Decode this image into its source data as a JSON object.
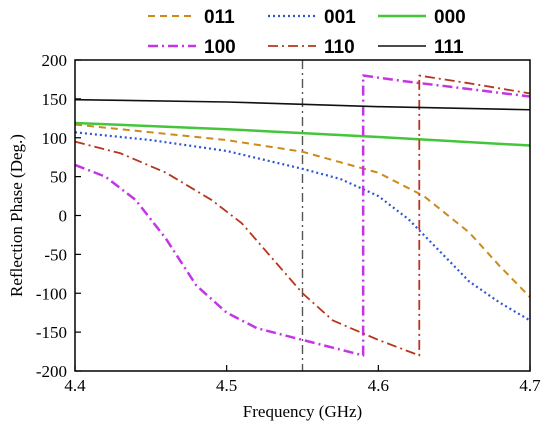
{
  "chart_data": {
    "type": "line",
    "title": "",
    "xlabel": "Frequency (GHz)",
    "ylabel": "Reflection Phase (Deg.)",
    "xlim": [
      4.4,
      4.7
    ],
    "ylim": [
      -200,
      200
    ],
    "xticks": [
      "4.4",
      "4.5",
      "4.6",
      "4.7"
    ],
    "xtick_values": [
      4.4,
      4.5,
      4.6,
      4.7
    ],
    "yticks": [
      "200",
      "150",
      "100",
      "50",
      "0",
      "-50",
      "-100",
      "-150",
      "-200"
    ],
    "ytick_values": [
      200,
      150,
      100,
      50,
      0,
      -50,
      -100,
      -150,
      -200
    ],
    "grid": false,
    "legend_position": "top",
    "annotations": [
      {
        "type": "vertical-line",
        "x": 4.55,
        "style": "dash-dot",
        "color": "#555555"
      }
    ],
    "series": [
      {
        "name": "011",
        "color": "#cc8a1a",
        "style": "dashed",
        "width": 2,
        "points": [
          [
            4.4,
            117
          ],
          [
            4.45,
            107
          ],
          [
            4.5,
            97
          ],
          [
            4.55,
            82
          ],
          [
            4.6,
            55
          ],
          [
            4.63,
            25
          ],
          [
            4.66,
            -22
          ],
          [
            4.68,
            -65
          ],
          [
            4.7,
            -105
          ]
        ]
      },
      {
        "name": "001",
        "color": "#2f55d6",
        "style": "dotted",
        "width": 2.2,
        "points": [
          [
            4.4,
            107
          ],
          [
            4.45,
            97
          ],
          [
            4.5,
            83
          ],
          [
            4.55,
            60
          ],
          [
            4.575,
            47
          ],
          [
            4.6,
            25
          ],
          [
            4.62,
            -5
          ],
          [
            4.64,
            -45
          ],
          [
            4.66,
            -85
          ],
          [
            4.68,
            -112
          ],
          [
            4.7,
            -135
          ]
        ]
      },
      {
        "name": "000",
        "color": "#44c53a",
        "style": "solid",
        "width": 2.5,
        "points": [
          [
            4.4,
            119
          ],
          [
            4.5,
            111
          ],
          [
            4.55,
            106
          ],
          [
            4.6,
            101
          ],
          [
            4.7,
            90
          ]
        ]
      },
      {
        "name": "100",
        "color": "#c435e6",
        "style": "dashdot",
        "width": 2.5,
        "points": [
          [
            4.4,
            65
          ],
          [
            4.42,
            50
          ],
          [
            4.44,
            20
          ],
          [
            4.46,
            -30
          ],
          [
            4.48,
            -90
          ],
          [
            4.5,
            -125
          ],
          [
            4.52,
            -145
          ],
          [
            4.55,
            -160
          ],
          [
            4.57,
            -170
          ],
          [
            4.59,
            -180
          ],
          [
            4.59,
            180
          ],
          [
            4.62,
            172
          ],
          [
            4.65,
            165
          ],
          [
            4.7,
            153
          ]
        ]
      },
      {
        "name": "110",
        "color": "#b5361c",
        "style": "dashdot",
        "width": 1.8,
        "points": [
          [
            4.4,
            95
          ],
          [
            4.43,
            80
          ],
          [
            4.46,
            55
          ],
          [
            4.49,
            20
          ],
          [
            4.51,
            -10
          ],
          [
            4.53,
            -55
          ],
          [
            4.55,
            -100
          ],
          [
            4.57,
            -135
          ],
          [
            4.6,
            -160
          ],
          [
            4.627,
            -180
          ],
          [
            4.627,
            180
          ],
          [
            4.66,
            170
          ],
          [
            4.7,
            157
          ]
        ]
      },
      {
        "name": "111",
        "color": "#111111",
        "style": "solid",
        "width": 1.6,
        "points": [
          [
            4.4,
            149
          ],
          [
            4.5,
            146
          ],
          [
            4.55,
            143
          ],
          [
            4.6,
            140
          ],
          [
            4.7,
            136
          ]
        ]
      }
    ]
  }
}
